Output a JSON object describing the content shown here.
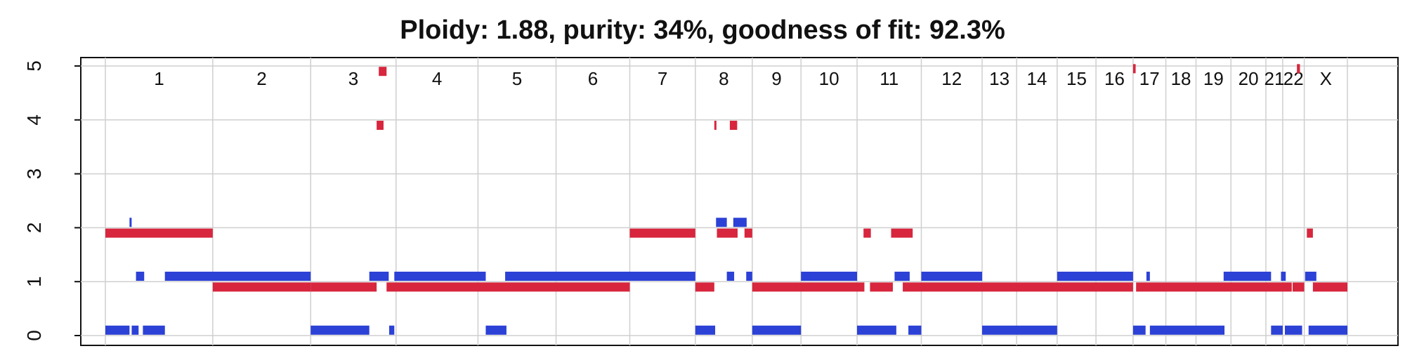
{
  "chart_data": {
    "type": "segment",
    "title": "Ploidy: 1.88, purity: 34%, goodness of fit: 92.3%",
    "xlabel": "",
    "ylabel": "",
    "ylim": [
      0,
      5
    ],
    "yticks": [
      "0",
      "1",
      "2",
      "3",
      "4",
      "5"
    ],
    "grid": true,
    "colors": {
      "major": "#d7263d",
      "minor": "#2c41d6"
    },
    "chromosomes": [
      {
        "label": "1",
        "start": 0,
        "end": 249
      },
      {
        "label": "2",
        "start": 249,
        "end": 476
      },
      {
        "label": "3",
        "start": 476,
        "end": 674
      },
      {
        "label": "4",
        "start": 674,
        "end": 864
      },
      {
        "label": "5",
        "start": 864,
        "end": 1045
      },
      {
        "label": "6",
        "start": 1045,
        "end": 1216
      },
      {
        "label": "7",
        "start": 1216,
        "end": 1368
      },
      {
        "label": "8",
        "start": 1368,
        "end": 1500
      },
      {
        "label": "9",
        "start": 1500,
        "end": 1613
      },
      {
        "label": "10",
        "start": 1613,
        "end": 1743
      },
      {
        "label": "11",
        "start": 1743,
        "end": 1892
      },
      {
        "label": "12",
        "start": 1892,
        "end": 2033
      },
      {
        "label": "13",
        "start": 2033,
        "end": 2113
      },
      {
        "label": "14",
        "start": 2113,
        "end": 2207
      },
      {
        "label": "15",
        "start": 2207,
        "end": 2297
      },
      {
        "label": "16",
        "start": 2297,
        "end": 2383
      },
      {
        "label": "17",
        "start": 2383,
        "end": 2459
      },
      {
        "label": "18",
        "start": 2459,
        "end": 2529
      },
      {
        "label": "19",
        "start": 2529,
        "end": 2610
      },
      {
        "label": "20",
        "start": 2610,
        "end": 2691
      },
      {
        "label": "21",
        "start": 2691,
        "end": 2730
      },
      {
        "label": "22",
        "start": 2730,
        "end": 2780
      },
      {
        "label": "X",
        "start": 2780,
        "end": 2880
      }
    ],
    "series": [
      {
        "segments": [
          [
            0,
            249,
            1.9
          ],
          [
            249,
            476,
            0.9
          ],
          [
            476,
            629,
            0.9
          ],
          [
            629,
            645,
            3.9
          ],
          [
            634,
            652,
            4.9
          ],
          [
            652,
            1216,
            0.9
          ],
          [
            1216,
            1368,
            1.9
          ],
          [
            1368,
            1412,
            0.9
          ],
          [
            1412,
            1416,
            3.9
          ],
          [
            1418,
            1466,
            1.9
          ],
          [
            1448,
            1465,
            3.9
          ],
          [
            1482,
            1500,
            1.9
          ],
          [
            1500,
            1760,
            0.9
          ],
          [
            1758,
            1775,
            1.9
          ],
          [
            1773,
            1826,
            0.9
          ],
          [
            1822,
            1872,
            1.9
          ],
          [
            1849,
            2383,
            0.9
          ],
          [
            2383,
            2389,
            4.95
          ],
          [
            2390,
            2751,
            0.9
          ],
          [
            2753,
            2780,
            0.9
          ],
          [
            2763,
            2770,
            4.95
          ],
          [
            2786,
            2800,
            1.9
          ],
          [
            2800,
            2880,
            0.9
          ]
        ]
      },
      {
        "segments": [
          [
            0,
            56,
            0.1
          ],
          [
            56,
            60,
            2.1
          ],
          [
            61,
            77,
            0.1
          ],
          [
            71,
            90,
            1.1
          ],
          [
            87,
            138,
            0.1
          ],
          [
            138,
            476,
            1.1
          ],
          [
            476,
            612,
            0.1
          ],
          [
            612,
            657,
            1.1
          ],
          [
            658,
            670,
            0.1
          ],
          [
            670,
            882,
            1.1
          ],
          [
            882,
            930,
            0.1
          ],
          [
            927,
            1368,
            1.1
          ],
          [
            1368,
            1414,
            0.1
          ],
          [
            1416,
            1441,
            2.1
          ],
          [
            1441,
            1458,
            1.1
          ],
          [
            1456,
            1487,
            2.1
          ],
          [
            1486,
            1500,
            1.1
          ],
          [
            1500,
            1613,
            0.1
          ],
          [
            1613,
            1743,
            1.1
          ],
          [
            1743,
            1834,
            0.1
          ],
          [
            1830,
            1865,
            1.1
          ],
          [
            1862,
            1892,
            0.1
          ],
          [
            1892,
            2033,
            1.1
          ],
          [
            2033,
            2207,
            0.1
          ],
          [
            2207,
            2383,
            1.1
          ],
          [
            2383,
            2412,
            0.1
          ],
          [
            2414,
            2422,
            1.1
          ],
          [
            2422,
            2595,
            0.1
          ],
          [
            2593,
            2703,
            1.1
          ],
          [
            2703,
            2730,
            0.1
          ],
          [
            2726,
            2737,
            1.1
          ],
          [
            2735,
            2775,
            0.1
          ],
          [
            2782,
            2808,
            1.1
          ],
          [
            2790,
            2880,
            0.1
          ]
        ]
      }
    ]
  }
}
